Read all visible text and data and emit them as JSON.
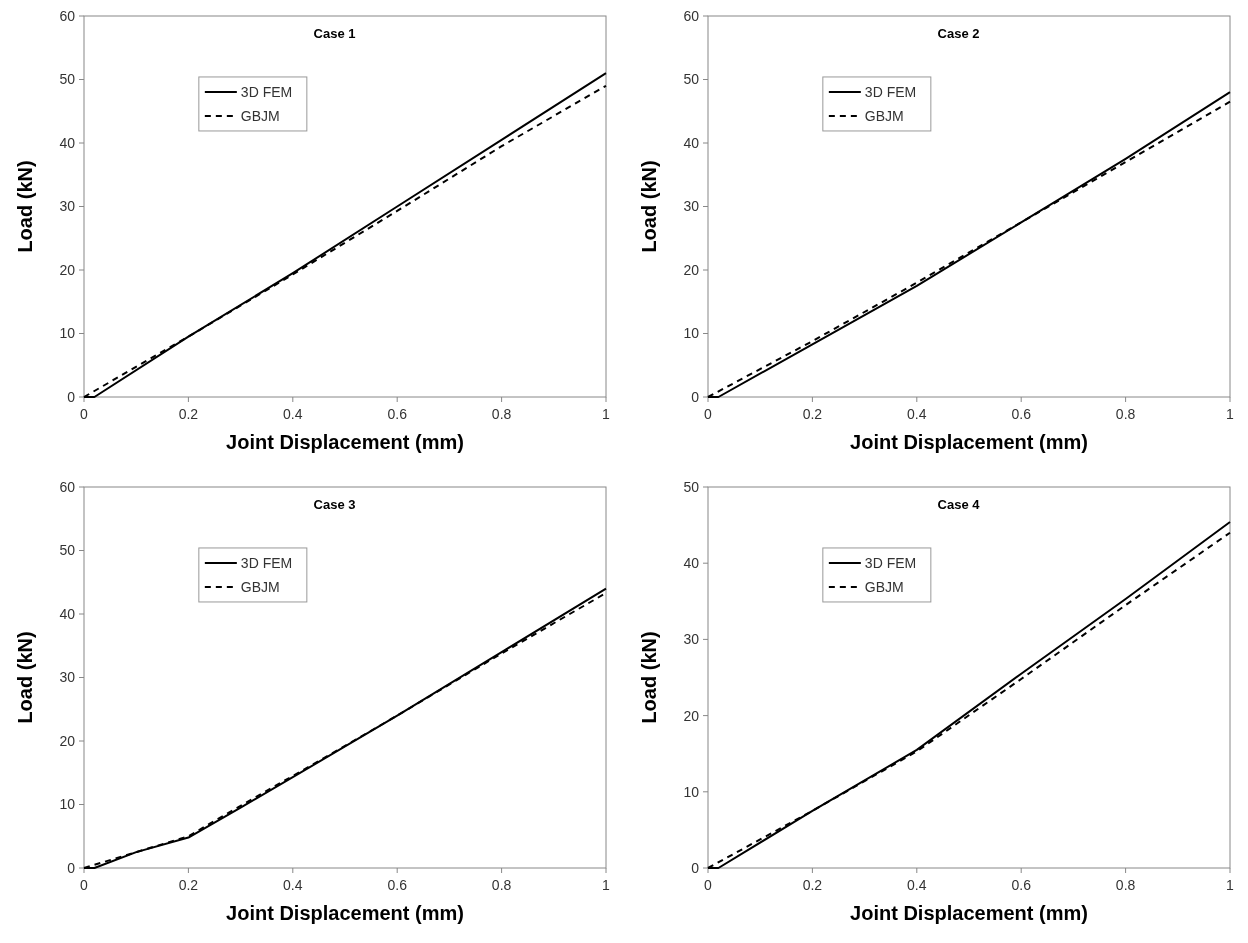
{
  "chart_data": [
    {
      "type": "line",
      "title": "Case 1",
      "xlabel": "Joint Displacement (mm)",
      "ylabel": "Load (kN)",
      "xlim": [
        0,
        1
      ],
      "ylim": [
        0,
        60
      ],
      "xticks": [
        0,
        0.2,
        0.4,
        0.6,
        0.8,
        1
      ],
      "yticks": [
        0,
        10,
        20,
        30,
        40,
        50,
        60
      ],
      "legend": "top left",
      "grid": false,
      "series": [
        {
          "name": "3D FEM",
          "color": "#000000",
          "line_style": "solid",
          "x": [
            0,
            0.02,
            0.2,
            0.4,
            0.6,
            0.8,
            1
          ],
          "values": [
            0,
            0,
            9.5,
            19.5,
            30,
            40.5,
            51
          ]
        },
        {
          "name": "GBJM",
          "color": "#000000",
          "line_style": "dashed",
          "x": [
            0,
            0.2,
            0.4,
            0.6,
            0.8,
            1
          ],
          "values": [
            0,
            9.5,
            19.3,
            29.3,
            39.5,
            49
          ]
        }
      ]
    },
    {
      "type": "line",
      "title": "Case 2",
      "xlabel": "Joint Displacement (mm)",
      "ylabel": "Load (kN)",
      "xlim": [
        0,
        1
      ],
      "ylim": [
        0,
        60
      ],
      "xticks": [
        0,
        0.2,
        0.4,
        0.6,
        0.8,
        1
      ],
      "yticks": [
        0,
        10,
        20,
        30,
        40,
        50,
        60
      ],
      "legend": "top left",
      "grid": false,
      "series": [
        {
          "name": "3D FEM",
          "color": "#000000",
          "line_style": "solid",
          "x": [
            0,
            0.02,
            0.2,
            0.4,
            0.6,
            0.8,
            1
          ],
          "values": [
            0,
            0,
            8.3,
            17.5,
            27.5,
            37.5,
            48
          ]
        },
        {
          "name": "GBJM",
          "color": "#000000",
          "line_style": "dashed",
          "x": [
            0,
            0.2,
            0.4,
            0.6,
            0.8,
            1
          ],
          "values": [
            0,
            8.8,
            18,
            27.5,
            37,
            46.5
          ]
        }
      ]
    },
    {
      "type": "line",
      "title": "Case 3",
      "xlabel": "Joint Displacement (mm)",
      "ylabel": "Load (kN)",
      "xlim": [
        0,
        1
      ],
      "ylim": [
        0,
        60
      ],
      "xticks": [
        0,
        0.2,
        0.4,
        0.6,
        0.8,
        1
      ],
      "yticks": [
        0,
        10,
        20,
        30,
        40,
        50,
        60
      ],
      "legend": "top left",
      "grid": false,
      "series": [
        {
          "name": "3D FEM",
          "color": "#000000",
          "line_style": "solid",
          "x": [
            0,
            0.02,
            0.1,
            0.2,
            0.3,
            0.4,
            0.6,
            0.8,
            1
          ],
          "values": [
            0,
            0,
            2.5,
            4.8,
            9.5,
            14.3,
            24,
            34,
            44
          ]
        },
        {
          "name": "GBJM",
          "color": "#000000",
          "line_style": "dashed",
          "x": [
            0,
            0.1,
            0.2,
            0.3,
            0.4,
            0.6,
            0.8,
            1
          ],
          "values": [
            0,
            2.5,
            5,
            9.8,
            14.5,
            24,
            33.8,
            43.3
          ]
        }
      ]
    },
    {
      "type": "line",
      "title": "Case 4",
      "xlabel": "Joint Displacement (mm)",
      "ylabel": "Load (kN)",
      "xlim": [
        0,
        1
      ],
      "ylim": [
        0,
        50
      ],
      "xticks": [
        0,
        0.2,
        0.4,
        0.6,
        0.8,
        1
      ],
      "yticks": [
        0,
        10,
        20,
        30,
        40,
        50
      ],
      "legend": "top left",
      "grid": false,
      "series": [
        {
          "name": "3D FEM",
          "color": "#000000",
          "line_style": "solid",
          "x": [
            0,
            0.02,
            0.2,
            0.4,
            0.6,
            0.8,
            1
          ],
          "values": [
            0,
            0,
            7.5,
            15.5,
            25.5,
            35.3,
            45.4
          ]
        },
        {
          "name": "GBJM",
          "color": "#000000",
          "line_style": "dashed",
          "x": [
            0,
            0.2,
            0.4,
            0.6,
            0.8,
            1
          ],
          "values": [
            0,
            7.5,
            15.3,
            24.8,
            34.5,
            44
          ]
        }
      ]
    }
  ]
}
